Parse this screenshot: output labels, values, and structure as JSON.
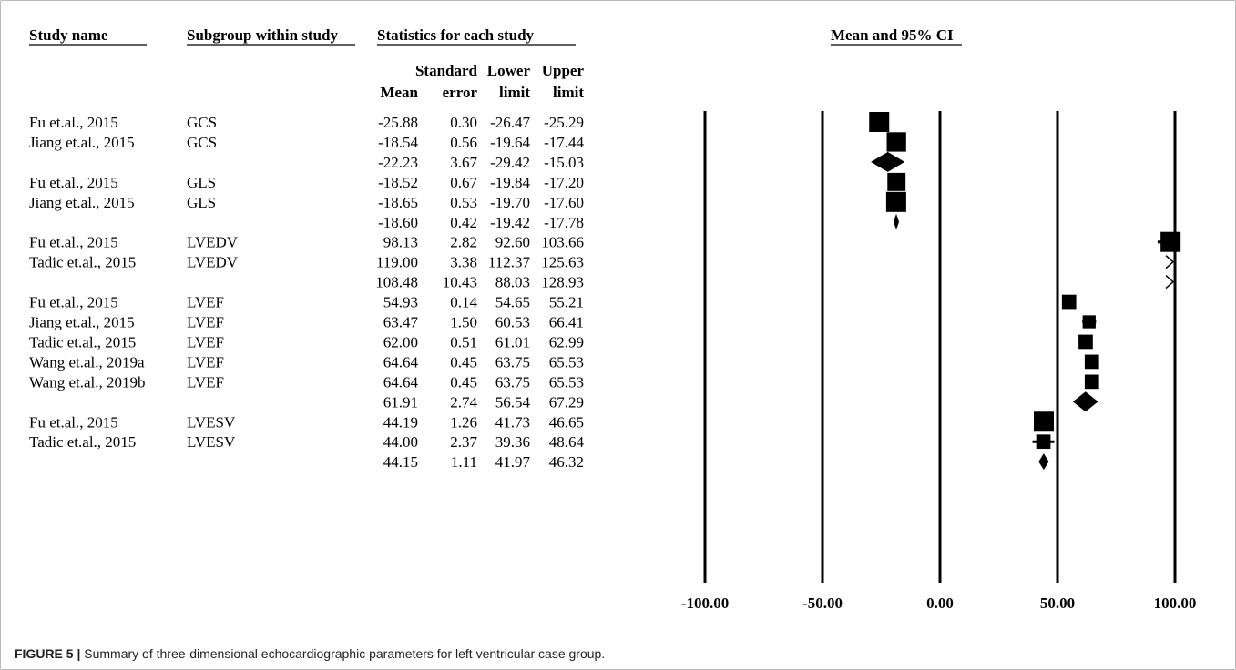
{
  "headers": {
    "study_name": "Study name",
    "subgroup": "Subgroup within study",
    "statistics": "Statistics for each study",
    "mean_ci": "Mean and 95% CI",
    "mean": "Mean",
    "se_line1": "Standard",
    "se_line2": "error",
    "lower_line1": "Lower",
    "lower_line2": "limit",
    "upper_line1": "Upper",
    "upper_line2": "limit"
  },
  "chart_data": {
    "type": "forest",
    "x_axis": {
      "min": -100,
      "max": 100,
      "ticks": [
        "-100.00",
        "-50.00",
        "0.00",
        "50.00",
        "100.00"
      ],
      "tick_values": [
        -100,
        -50,
        0,
        50,
        100
      ]
    },
    "rows": [
      {
        "study": "Fu et.al., 2015",
        "subgroup": "GCS",
        "mean": "-25.88",
        "se": "0.30",
        "lower": "-26.47",
        "upper": "-25.29",
        "mean_v": -25.88,
        "lower_v": -26.47,
        "upper_v": -25.29,
        "kind": "study",
        "weight": 1.0
      },
      {
        "study": "Jiang et.al., 2015",
        "subgroup": "GCS",
        "mean": "-18.54",
        "se": "0.56",
        "lower": "-19.64",
        "upper": "-17.44",
        "mean_v": -18.54,
        "lower_v": -19.64,
        "upper_v": -17.44,
        "kind": "study",
        "weight": 0.95
      },
      {
        "study": "",
        "subgroup": "",
        "mean": "-22.23",
        "se": "3.67",
        "lower": "-29.42",
        "upper": "-15.03",
        "mean_v": -22.23,
        "lower_v": -29.42,
        "upper_v": -15.03,
        "kind": "summary"
      },
      {
        "study": "Fu et.al., 2015",
        "subgroup": "GLS",
        "mean": "-18.52",
        "se": "0.67",
        "lower": "-19.84",
        "upper": "-17.20",
        "mean_v": -18.52,
        "lower_v": -19.84,
        "upper_v": -17.2,
        "kind": "study",
        "weight": 0.85
      },
      {
        "study": "Jiang et.al., 2015",
        "subgroup": "GLS",
        "mean": "-18.65",
        "se": "0.53",
        "lower": "-19.70",
        "upper": "-17.60",
        "mean_v": -18.65,
        "lower_v": -19.7,
        "upper_v": -17.6,
        "kind": "study",
        "weight": 1.0
      },
      {
        "study": "",
        "subgroup": "",
        "mean": "-18.60",
        "se": "0.42",
        "lower": "-19.42",
        "upper": "-17.78",
        "mean_v": -18.6,
        "lower_v": -19.42,
        "upper_v": -17.78,
        "kind": "summary"
      },
      {
        "study": "Fu et.al., 2015",
        "subgroup": "LVEDV",
        "mean": "98.13",
        "se": "2.82",
        "lower": "92.60",
        "upper": "103.66",
        "mean_v": 98.13,
        "lower_v": 92.6,
        "upper_v": 103.66,
        "kind": "study",
        "weight": 1.0
      },
      {
        "study": "Tadic et.al., 2015",
        "subgroup": "LVEDV",
        "mean": "119.00",
        "se": "3.38",
        "lower": "112.37",
        "upper": "125.63",
        "mean_v": 119.0,
        "lower_v": 112.37,
        "upper_v": 125.63,
        "kind": "study",
        "weight": 0.9
      },
      {
        "study": "",
        "subgroup": "",
        "mean": "108.48",
        "se": "10.43",
        "lower": "88.03",
        "upper": "128.93",
        "mean_v": 108.48,
        "lower_v": 88.03,
        "upper_v": 128.93,
        "kind": "summary"
      },
      {
        "study": "Fu et.al., 2015",
        "subgroup": "LVEF",
        "mean": "54.93",
        "se": "0.14",
        "lower": "54.65",
        "upper": "55.21",
        "mean_v": 54.93,
        "lower_v": 54.65,
        "upper_v": 55.21,
        "kind": "study",
        "weight": 0.55
      },
      {
        "study": "Jiang et.al., 2015",
        "subgroup": "LVEF",
        "mean": "63.47",
        "se": "1.50",
        "lower": "60.53",
        "upper": "66.41",
        "mean_v": 63.47,
        "lower_v": 60.53,
        "upper_v": 66.41,
        "kind": "study",
        "weight": 0.45
      },
      {
        "study": "Tadic et.al., 2015",
        "subgroup": "LVEF",
        "mean": "62.00",
        "se": "0.51",
        "lower": "61.01",
        "upper": "62.99",
        "mean_v": 62.0,
        "lower_v": 61.01,
        "upper_v": 62.99,
        "kind": "study",
        "weight": 0.55
      },
      {
        "study": "Wang et.al., 2019a",
        "subgroup": "LVEF",
        "mean": "64.64",
        "se": "0.45",
        "lower": "63.75",
        "upper": "65.53",
        "mean_v": 64.64,
        "lower_v": 63.75,
        "upper_v": 65.53,
        "kind": "study",
        "weight": 0.55
      },
      {
        "study": "Wang et.al., 2019b",
        "subgroup": "LVEF",
        "mean": "64.64",
        "se": "0.45",
        "lower": "63.75",
        "upper": "65.53",
        "mean_v": 64.64,
        "lower_v": 63.75,
        "upper_v": 65.53,
        "kind": "study",
        "weight": 0.55
      },
      {
        "study": "",
        "subgroup": "",
        "mean": "61.91",
        "se": "2.74",
        "lower": "56.54",
        "upper": "67.29",
        "mean_v": 61.91,
        "lower_v": 56.54,
        "upper_v": 67.29,
        "kind": "summary"
      },
      {
        "study": "Fu et.al., 2015",
        "subgroup": "LVESV",
        "mean": "44.19",
        "se": "1.26",
        "lower": "41.73",
        "upper": "46.65",
        "mean_v": 44.19,
        "lower_v": 41.73,
        "upper_v": 46.65,
        "kind": "study",
        "weight": 1.0
      },
      {
        "study": "Tadic et.al., 2015",
        "subgroup": "LVESV",
        "mean": "44.00",
        "se": "2.37",
        "lower": "39.36",
        "upper": "48.64",
        "mean_v": 44.0,
        "lower_v": 39.36,
        "upper_v": 48.64,
        "kind": "study",
        "weight": 0.55
      },
      {
        "study": "",
        "subgroup": "",
        "mean": "44.15",
        "se": "1.11",
        "lower": "41.97",
        "upper": "46.32",
        "mean_v": 44.15,
        "lower_v": 41.97,
        "upper_v": 46.32,
        "kind": "summary"
      }
    ]
  },
  "caption": {
    "label": "FIGURE 5 |",
    "text": " Summary of three-dimensional echocardiographic parameters for left ventricular case group."
  },
  "colors": {
    "ink": "#000000",
    "frame": "#b9b9b9"
  }
}
